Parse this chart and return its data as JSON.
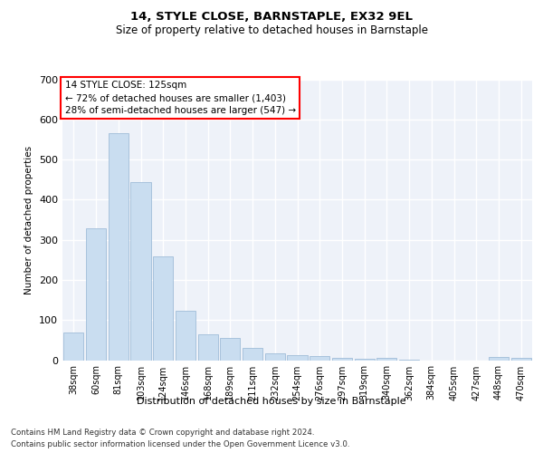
{
  "title": "14, STYLE CLOSE, BARNSTAPLE, EX32 9EL",
  "subtitle": "Size of property relative to detached houses in Barnstaple",
  "xlabel": "Distribution of detached houses by size in Barnstaple",
  "ylabel": "Number of detached properties",
  "categories": [
    "38sqm",
    "60sqm",
    "81sqm",
    "103sqm",
    "124sqm",
    "146sqm",
    "168sqm",
    "189sqm",
    "211sqm",
    "232sqm",
    "254sqm",
    "276sqm",
    "297sqm",
    "319sqm",
    "340sqm",
    "362sqm",
    "384sqm",
    "405sqm",
    "427sqm",
    "448sqm",
    "470sqm"
  ],
  "values": [
    70,
    328,
    565,
    443,
    258,
    122,
    65,
    55,
    30,
    18,
    13,
    10,
    5,
    4,
    5,
    2,
    0,
    0,
    0,
    7,
    5
  ],
  "bar_color": "#c9ddf0",
  "bar_edge_color": "#a0bcd8",
  "highlight_bar_index": 4,
  "annotation_box_text": "14 STYLE CLOSE: 125sqm\n← 72% of detached houses are smaller (1,403)\n28% of semi-detached houses are larger (547) →",
  "footer_line1": "Contains HM Land Registry data © Crown copyright and database right 2024.",
  "footer_line2": "Contains public sector information licensed under the Open Government Licence v3.0.",
  "ylim": [
    0,
    700
  ],
  "yticks": [
    0,
    100,
    200,
    300,
    400,
    500,
    600,
    700
  ],
  "background_color": "#eef2f9",
  "grid_color": "#ffffff",
  "fig_bg_color": "#ffffff"
}
